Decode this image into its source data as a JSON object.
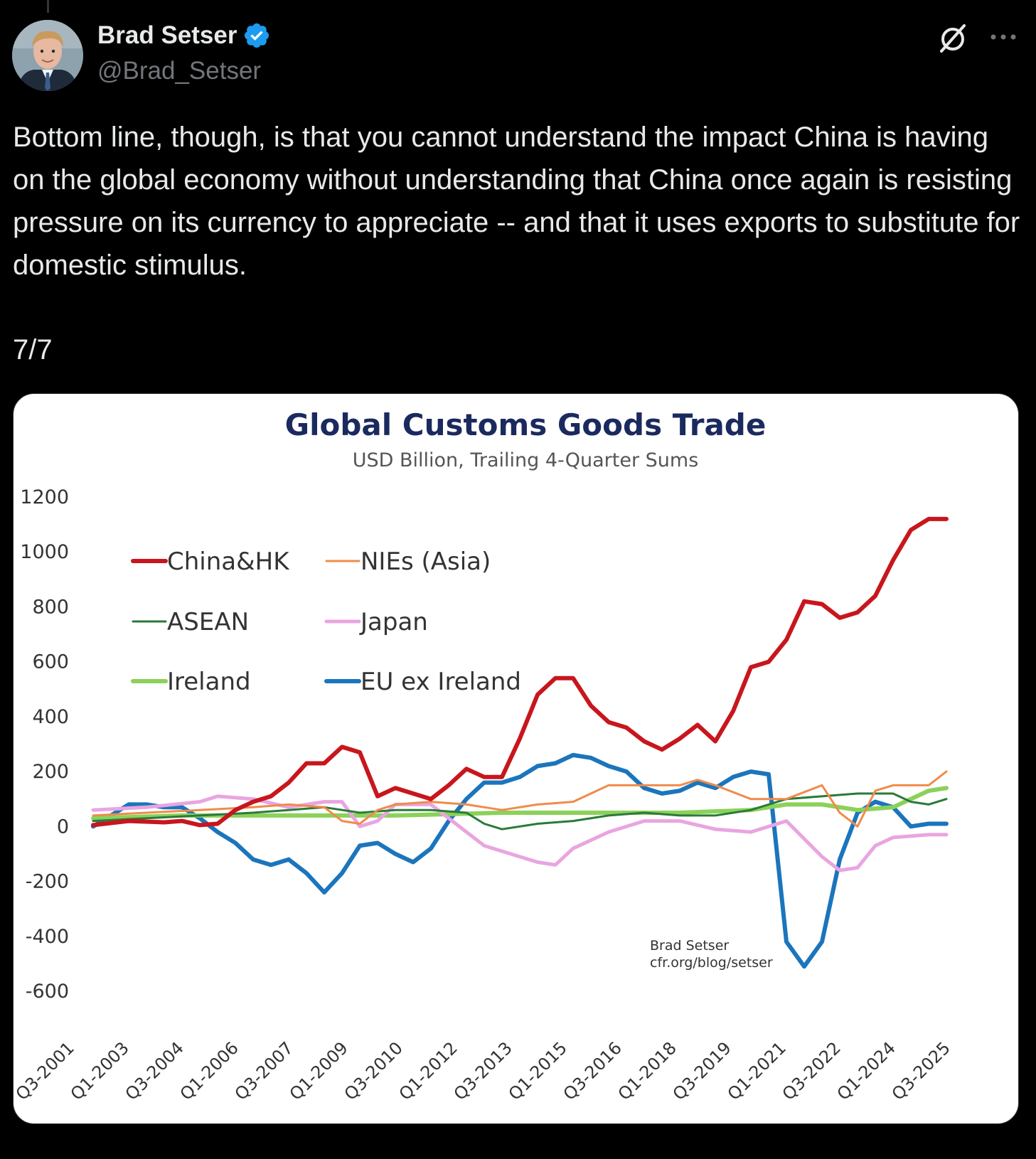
{
  "author": {
    "display_name": "Brad Setser",
    "handle": "@Brad_Setser",
    "verified": true,
    "verified_color": "#1d9bf0"
  },
  "header_icons": [
    "grok-icon",
    "more-icon"
  ],
  "tweet": {
    "text": "Bottom line, though, is that you cannot understand the impact China is having on the global economy without understanding that China once again is resisting pressure on its currency to appreciate -- and that it uses exports to substitute for domestic stimulus.",
    "thread_count": "7/7"
  },
  "chart_data": {
    "type": "line",
    "title": "Global Customs Goods Trade",
    "subtitle": "USD Billion, Trailing 4-Quarter Sums",
    "ylim": [
      -600,
      1200
    ],
    "y_ticks": [
      "1200",
      "1000",
      "800",
      "600",
      "400",
      "200",
      "0",
      "-200",
      "-400",
      "-600"
    ],
    "x_tick_labels": [
      "Q3-2001",
      "Q1-2003",
      "Q3-2004",
      "Q1-2006",
      "Q3-2007",
      "Q1-2009",
      "Q3-2010",
      "Q1-2012",
      "Q3-2013",
      "Q1-2015",
      "Q3-2016",
      "Q1-2018",
      "Q3-2019",
      "Q1-2021",
      "Q3-2022",
      "Q1-2024",
      "Q3-2025"
    ],
    "x_range": [
      2001.5,
      2025.5
    ],
    "grid": false,
    "legend_placement": "top-left",
    "credit": [
      "Brad Setser",
      "cfr.org/blog/setser"
    ],
    "series": [
      {
        "name": "China&HK",
        "color": "#c8161d",
        "x": [
          2001.5,
          2002.5,
          2003.5,
          2004,
          2004.5,
          2005,
          2005.5,
          2006,
          2006.5,
          2007,
          2007.5,
          2008,
          2008.5,
          2009,
          2009.5,
          2010,
          2010.5,
          2011,
          2011.5,
          2012,
          2012.5,
          2013,
          2013.5,
          2014,
          2014.5,
          2015,
          2015.5,
          2016,
          2016.5,
          2017,
          2017.5,
          2018,
          2018.5,
          2019,
          2019.5,
          2020,
          2020.5,
          2021,
          2021.5,
          2022,
          2022.5,
          2023,
          2023.5,
          2024,
          2024.5,
          2025,
          2025.5
        ],
        "values": [
          5,
          20,
          15,
          20,
          5,
          10,
          60,
          90,
          110,
          160,
          230,
          230,
          290,
          270,
          110,
          140,
          120,
          100,
          150,
          210,
          180,
          180,
          320,
          480,
          540,
          540,
          440,
          380,
          360,
          310,
          280,
          320,
          370,
          310,
          420,
          580,
          600,
          680,
          820,
          810,
          760,
          780,
          840,
          970,
          1080,
          1120,
          1120
        ]
      },
      {
        "name": "NIEs (Asia)",
        "color": "#f08b4b",
        "x": [
          2001.5,
          2003,
          2004.5,
          2006,
          2007,
          2008,
          2008.5,
          2009,
          2009.5,
          2010,
          2011,
          2012,
          2013,
          2014,
          2015,
          2016,
          2017,
          2018,
          2018.5,
          2019,
          2020,
          2021,
          2022,
          2022.5,
          2023,
          2023.5,
          2024,
          2025,
          2025.5
        ],
        "values": [
          40,
          50,
          60,
          70,
          80,
          70,
          20,
          10,
          60,
          80,
          90,
          80,
          60,
          80,
          90,
          150,
          150,
          150,
          170,
          150,
          100,
          100,
          150,
          50,
          0,
          130,
          150,
          150,
          200
        ]
      },
      {
        "name": "ASEAN",
        "color": "#2a7a38",
        "x": [
          2001.5,
          2003,
          2004.5,
          2006,
          2007,
          2008,
          2009,
          2010,
          2011,
          2012,
          2012.5,
          2013,
          2014,
          2015,
          2016,
          2017,
          2018,
          2019,
          2020,
          2021,
          2022,
          2023,
          2024,
          2024.5,
          2025,
          2025.5
        ],
        "values": [
          20,
          30,
          40,
          50,
          60,
          70,
          50,
          60,
          60,
          50,
          10,
          -10,
          10,
          20,
          40,
          50,
          40,
          40,
          60,
          100,
          110,
          120,
          120,
          90,
          80,
          100
        ]
      },
      {
        "name": "Japan",
        "color": "#e9a5e0",
        "x": [
          2001.5,
          2003,
          2004.5,
          2005,
          2006,
          2007,
          2008,
          2008.5,
          2009,
          2009.5,
          2010,
          2011,
          2012,
          2012.5,
          2013,
          2014,
          2014.5,
          2015,
          2016,
          2017,
          2018,
          2019,
          2020,
          2021,
          2022,
          2022.5,
          2023,
          2023.5,
          2024,
          2025,
          2025.5
        ],
        "values": [
          60,
          70,
          90,
          110,
          100,
          70,
          90,
          90,
          0,
          20,
          80,
          80,
          -20,
          -70,
          -90,
          -130,
          -140,
          -80,
          -20,
          20,
          20,
          -10,
          -20,
          20,
          -110,
          -160,
          -150,
          -70,
          -40,
          -30,
          -30
        ]
      },
      {
        "name": "Ireland",
        "color": "#8bd15a",
        "x": [
          2001.5,
          2004,
          2007,
          2010,
          2013,
          2015,
          2018,
          2020,
          2021,
          2022,
          2023,
          2024,
          2024.5,
          2025,
          2025.5
        ],
        "values": [
          30,
          40,
          40,
          40,
          50,
          50,
          50,
          60,
          80,
          80,
          60,
          70,
          100,
          130,
          140
        ]
      },
      {
        "name": "EU ex Ireland",
        "color": "#1b75bc",
        "x": [
          2001.5,
          2002,
          2002.5,
          2003,
          2003.5,
          2004,
          2004.5,
          2005,
          2005.5,
          2006,
          2006.5,
          2007,
          2007.5,
          2008,
          2008.5,
          2009,
          2009.5,
          2010,
          2010.5,
          2011,
          2011.5,
          2012,
          2012.5,
          2013,
          2013.5,
          2014,
          2014.5,
          2015,
          2015.5,
          2016,
          2016.5,
          2017,
          2017.5,
          2018,
          2018.5,
          2019,
          2019.5,
          2020,
          2020.5,
          2021,
          2021.5,
          2022,
          2022.5,
          2023,
          2023.5,
          2024,
          2024.5,
          2025,
          2025.5
        ],
        "values": [
          0,
          40,
          80,
          80,
          70,
          70,
          30,
          -20,
          -60,
          -120,
          -140,
          -120,
          -170,
          -240,
          -170,
          -70,
          -60,
          -100,
          -130,
          -80,
          20,
          100,
          160,
          160,
          180,
          220,
          230,
          260,
          250,
          220,
          200,
          140,
          120,
          130,
          160,
          140,
          180,
          200,
          190,
          -420,
          -510,
          -420,
          -120,
          50,
          90,
          70,
          0,
          10,
          10
        ]
      }
    ]
  }
}
